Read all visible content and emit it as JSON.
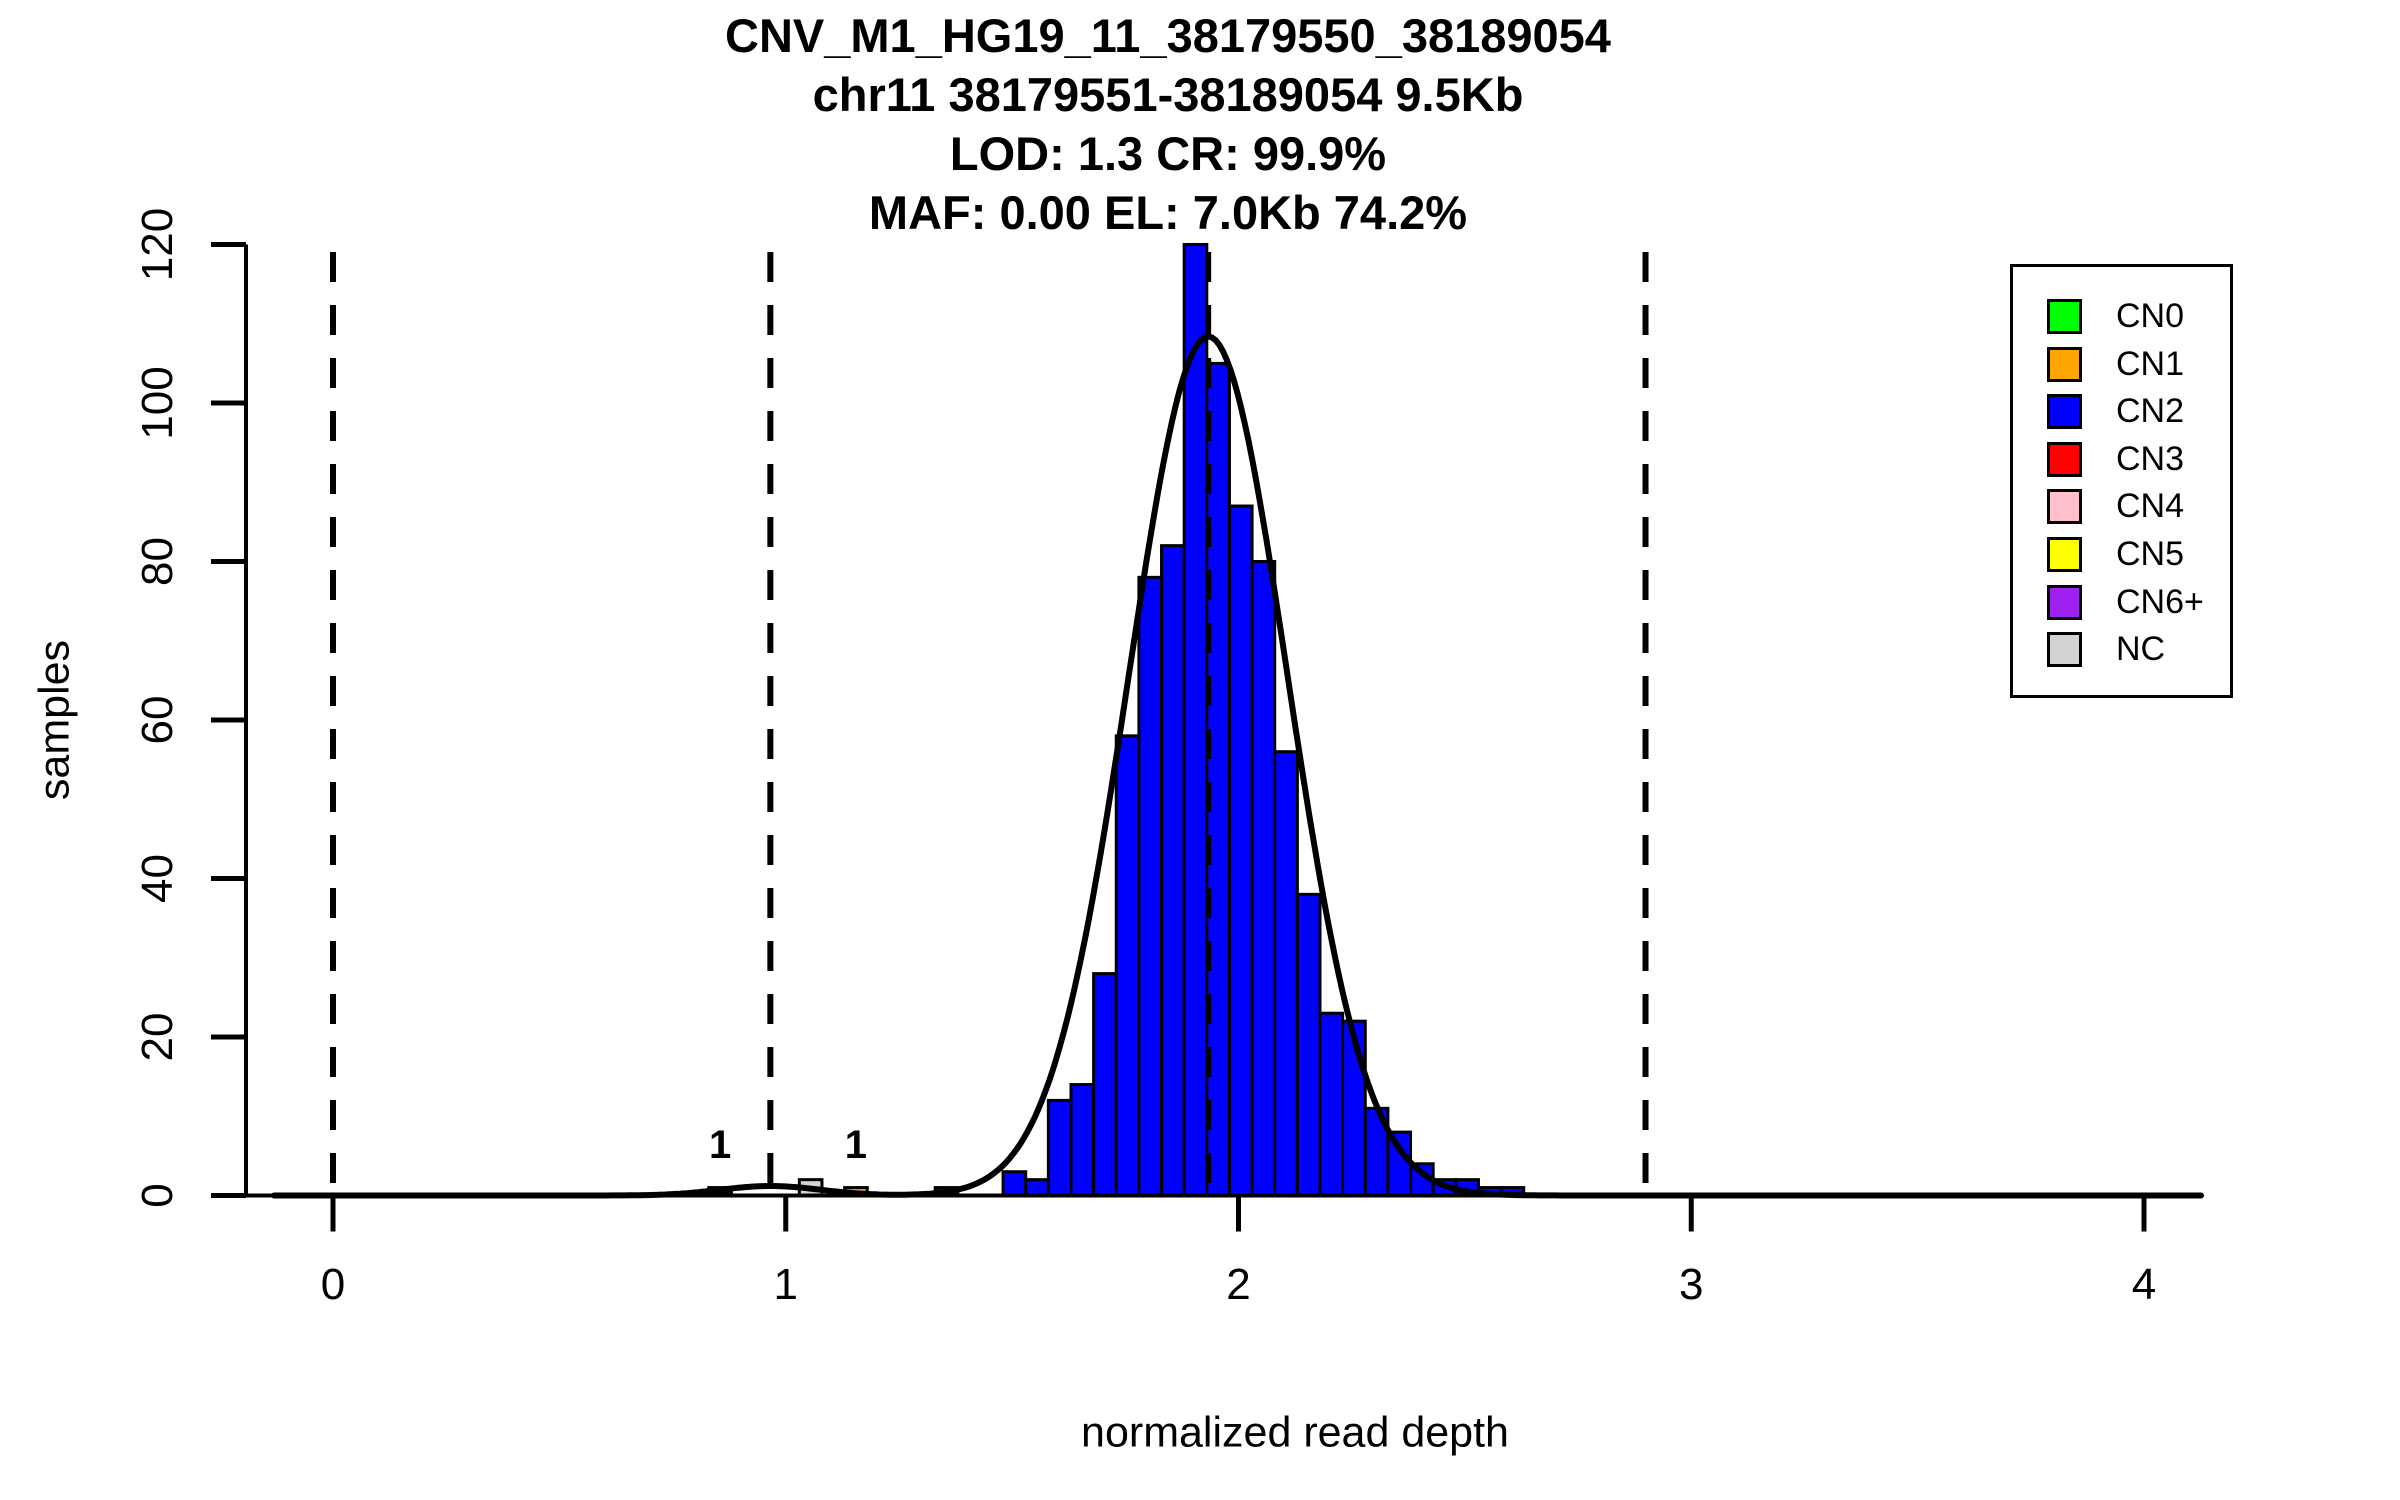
{
  "header": {
    "line1": "CNV_M1_HG19_11_38179550_38189054",
    "line2": "chr11 38179551-38189054 9.5Kb",
    "line3": "LOD: 1.3 CR: 99.9%",
    "line4": "MAF: 0.00 EL: 7.0Kb 74.2%"
  },
  "axes": {
    "x_label": "normalized read depth",
    "y_label": "samples",
    "x_ticks": [
      0,
      1,
      2,
      3,
      4
    ],
    "y_ticks": [
      0,
      20,
      40,
      60,
      80,
      100,
      120
    ],
    "xlim": [
      0,
      4
    ],
    "ylim": [
      0,
      120
    ]
  },
  "legend": {
    "items": [
      {
        "label": "CN0",
        "cn": "CN0"
      },
      {
        "label": "CN1",
        "cn": "CN1"
      },
      {
        "label": "CN2",
        "cn": "CN2"
      },
      {
        "label": "CN3",
        "cn": "CN3"
      },
      {
        "label": "CN4",
        "cn": "CN4"
      },
      {
        "label": "CN5",
        "cn": "CN5"
      },
      {
        "label": "CN6+",
        "cn": "CN6+"
      },
      {
        "label": "NC",
        "cn": "NC"
      }
    ]
  },
  "colors": {
    "CN0": "#00FF00",
    "CN1": "#FFA500",
    "CN2": "#0000FF",
    "CN3": "#FF0000",
    "CN4": "#FFC0CB",
    "CN5": "#FFFF00",
    "CN6+": "#A020F0",
    "NC": "#D3D3D3",
    "BLACK": "#000000",
    "axis": "#000000",
    "curve": "#000000"
  },
  "chart_data": {
    "type": "bar",
    "subtype": "histogram_with_density_curve",
    "title": "CNV_M1_HG19_11_38179550_38189054",
    "xlabel": "normalized read depth",
    "ylabel": "samples",
    "xlim": [
      0,
      4
    ],
    "ylim": [
      0,
      120
    ],
    "bin_width": 0.05,
    "bins": [
      {
        "x": 0.855,
        "count": 1,
        "cn": "BLACK"
      },
      {
        "x": 1.055,
        "count": 2,
        "cn": "NC"
      },
      {
        "x": 1.155,
        "count": 1,
        "cn": "CN1"
      },
      {
        "x": 1.355,
        "count": 1,
        "cn": "CN2"
      },
      {
        "x": 1.505,
        "count": 3,
        "cn": "CN2"
      },
      {
        "x": 1.555,
        "count": 2,
        "cn": "CN2"
      },
      {
        "x": 1.605,
        "count": 12,
        "cn": "CN2"
      },
      {
        "x": 1.655,
        "count": 14,
        "cn": "CN2"
      },
      {
        "x": 1.705,
        "count": 28,
        "cn": "CN2"
      },
      {
        "x": 1.755,
        "count": 58,
        "cn": "CN2"
      },
      {
        "x": 1.805,
        "count": 78,
        "cn": "CN2"
      },
      {
        "x": 1.855,
        "count": 82,
        "cn": "CN2"
      },
      {
        "x": 1.905,
        "count": 120,
        "cn": "CN2"
      },
      {
        "x": 1.955,
        "count": 105,
        "cn": "CN2"
      },
      {
        "x": 2.005,
        "count": 87,
        "cn": "CN2"
      },
      {
        "x": 2.055,
        "count": 80,
        "cn": "CN2"
      },
      {
        "x": 2.105,
        "count": 56,
        "cn": "CN2"
      },
      {
        "x": 2.155,
        "count": 38,
        "cn": "CN2"
      },
      {
        "x": 2.205,
        "count": 23,
        "cn": "CN2"
      },
      {
        "x": 2.255,
        "count": 22,
        "cn": "CN2"
      },
      {
        "x": 2.305,
        "count": 11,
        "cn": "CN2"
      },
      {
        "x": 2.355,
        "count": 8,
        "cn": "CN2"
      },
      {
        "x": 2.405,
        "count": 4,
        "cn": "CN2"
      },
      {
        "x": 2.455,
        "count": 2,
        "cn": "CN2"
      },
      {
        "x": 2.505,
        "count": 2,
        "cn": "CN2"
      },
      {
        "x": 2.555,
        "count": 1,
        "cn": "CN2"
      },
      {
        "x": 2.605,
        "count": 1,
        "cn": "CN2"
      }
    ],
    "dashed_lines_x": [
      0,
      0.966,
      1.933,
      2.899
    ],
    "density_curve": {
      "components": [
        {
          "mu": 1.933,
          "sigma": 0.175,
          "amp": 108.4
        },
        {
          "mu": 0.966,
          "sigma": 0.11,
          "amp": 1.2
        }
      ]
    },
    "annotations": [
      {
        "x": 0.855,
        "label": "1"
      },
      {
        "x": 1.155,
        "label": "1"
      }
    ],
    "legend_entries": [
      "CN0",
      "CN1",
      "CN2",
      "CN3",
      "CN4",
      "CN5",
      "CN6+",
      "NC"
    ],
    "grid": false,
    "legend_position": "top-right"
  }
}
